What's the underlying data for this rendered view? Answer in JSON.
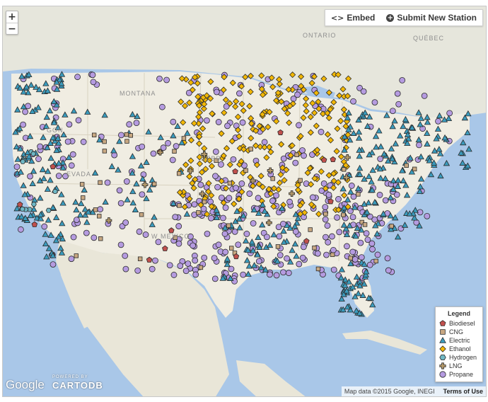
{
  "controls": {
    "zoom_in": "+",
    "zoom_out": "−"
  },
  "topbar": {
    "embed_icon": "<>",
    "embed_label": "Embed",
    "submit_icon": "+",
    "submit_label": "Submit New Station"
  },
  "region_labels": {
    "ontario": "ONTARIO",
    "quebec": "QUÉBEC",
    "montana": "MONTANA",
    "oregon": "GON",
    "nevada": "EVADA",
    "nebraska": "NEBR",
    "new_mexico": "W MEXICO"
  },
  "legend": {
    "title": "Legend",
    "items": [
      {
        "label": "Biodiesel",
        "shape": "pentagon",
        "color": "#c0504d"
      },
      {
        "label": "CNG",
        "shape": "square",
        "color": "#c8a882"
      },
      {
        "label": "Electric",
        "shape": "triangle",
        "color": "#3a9bbd"
      },
      {
        "label": "Ethanol",
        "shape": "diamond",
        "color": "#f2b705"
      },
      {
        "label": "Hydrogen",
        "shape": "hexagon",
        "color": "#6fb7c4"
      },
      {
        "label": "LNG",
        "shape": "cross",
        "color": "#b59a6a"
      },
      {
        "label": "Propane",
        "shape": "circle",
        "color": "#b59be0"
      }
    ]
  },
  "attribution": {
    "mapdata": "Map data ©2015 Google, INEGI",
    "terms": "Terms of Use"
  },
  "logos": {
    "google": "Google",
    "powered_by": "POWERED BY",
    "cartodb": "CARTODB"
  }
}
